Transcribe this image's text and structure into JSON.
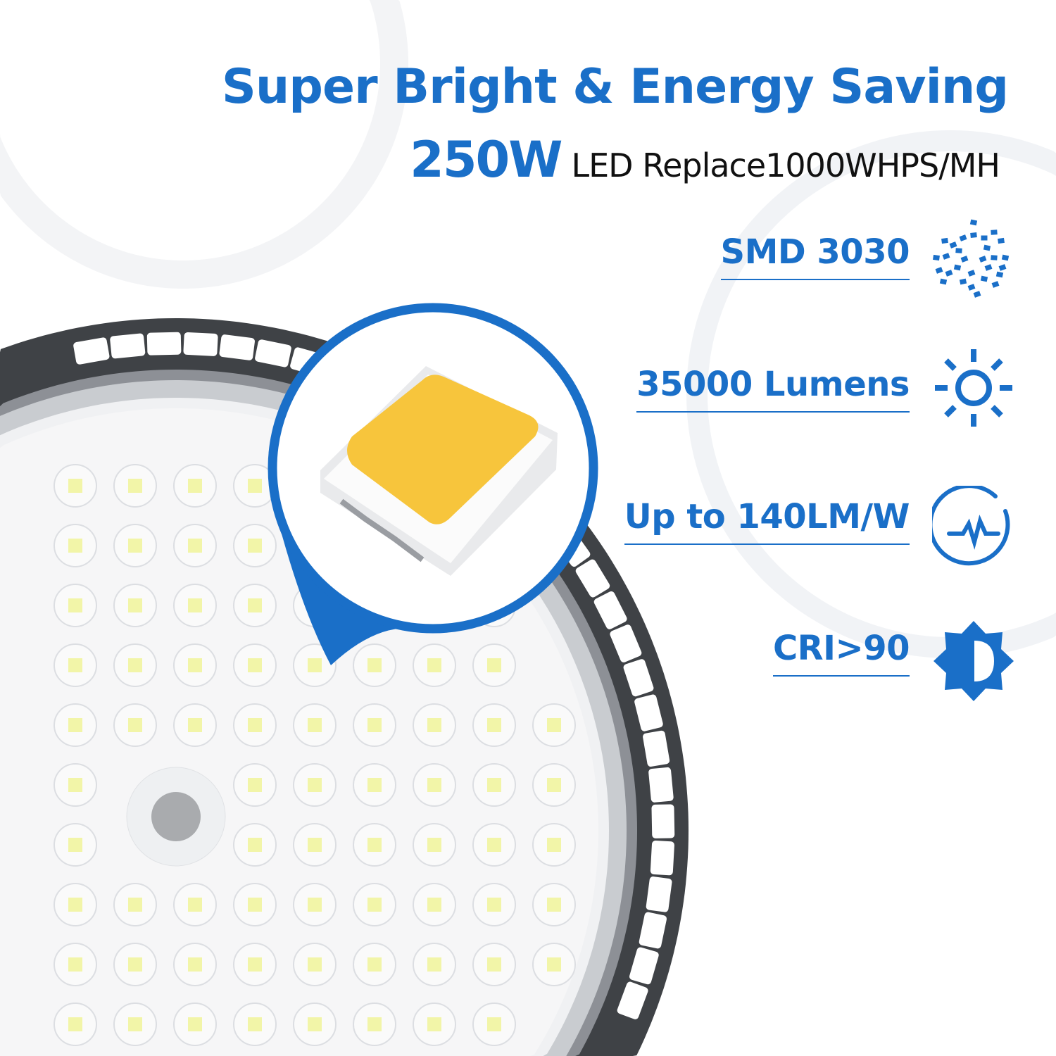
{
  "headline": {
    "title": "Super Bright & Energy Saving",
    "wattage": "250W",
    "replacement": "LED Replace1000WHPS/MH"
  },
  "features": [
    {
      "label": "SMD 3030",
      "icon": "led-chip-dots-icon"
    },
    {
      "label": "35000 Lumens",
      "icon": "sun-icon"
    },
    {
      "label": "Up to 140LM/W",
      "icon": "efficiency-pulse-icon"
    },
    {
      "label": "CRI>90",
      "icon": "contrast-sun-icon"
    }
  ],
  "colors": {
    "accent": "#1a6fc8",
    "housing": "#3f4246",
    "led_chip": "#f7c53c"
  }
}
